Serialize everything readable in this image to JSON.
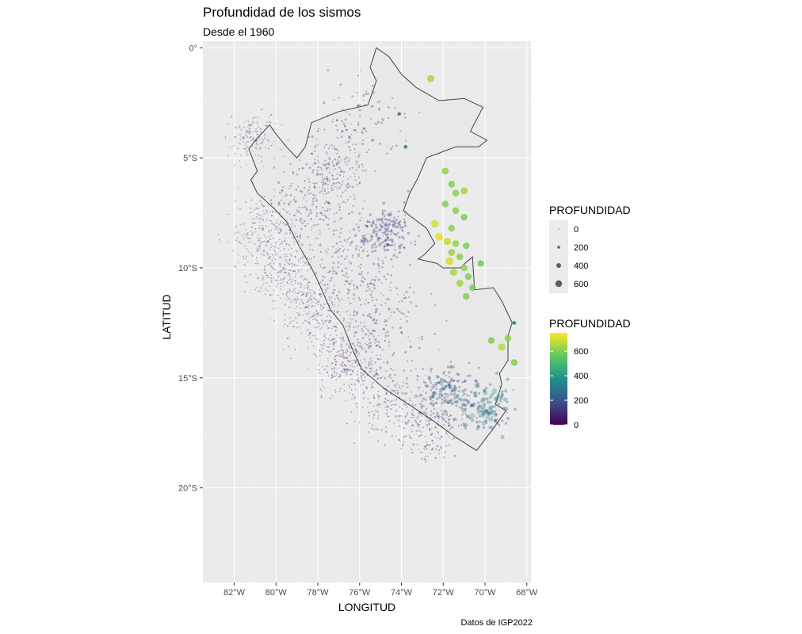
{
  "title": "Profundidad de los sismos",
  "subtitle": "Desde el 1960",
  "caption": "Datos de IGP2022",
  "chart_data": {
    "type": "scatter",
    "title": "Profundidad de los sismos",
    "subtitle": "Desde el 1960",
    "xlabel": "LONGITUD",
    "ylabel": "LATITUD",
    "xlim": [
      -83.5,
      -67.8
    ],
    "ylim": [
      -24.3,
      0.3
    ],
    "x_ticks": [
      -82,
      -80,
      -78,
      -76,
      -74,
      -72,
      -70,
      -68
    ],
    "x_tick_labels": [
      "82°W",
      "80°W",
      "78°W",
      "76°W",
      "74°W",
      "72°W",
      "70°W",
      "68°W"
    ],
    "y_ticks": [
      0,
      -5,
      -10,
      -15,
      -20
    ],
    "y_tick_labels": [
      "0°",
      "5°S",
      "10°S",
      "15°S",
      "20°S"
    ],
    "grid": true,
    "legend_position": "right",
    "size_legend": {
      "title": "PROFUNDIDAD",
      "breaks": [
        0,
        200,
        400,
        600
      ],
      "labels": [
        "0",
        "200",
        "400",
        "600"
      ]
    },
    "color_legend": {
      "title": "PROFUNDIDAD",
      "palette": "viridis",
      "range": [
        0,
        750
      ],
      "breaks": [
        0,
        200,
        400,
        600
      ],
      "labels": [
        "0",
        "200",
        "400",
        "600"
      ]
    },
    "colors": [
      "#440154",
      "#3b528b",
      "#21908c",
      "#5ec962",
      "#fde725"
    ],
    "boundary": [
      [
        -75.2,
        0.0
      ],
      [
        -74.6,
        -0.4
      ],
      [
        -74.0,
        -1.2
      ],
      [
        -73.3,
        -1.8
      ],
      [
        -72.2,
        -2.4
      ],
      [
        -71.0,
        -2.3
      ],
      [
        -70.1,
        -2.7
      ],
      [
        -70.7,
        -3.8
      ],
      [
        -69.9,
        -4.2
      ],
      [
        -70.3,
        -4.5
      ],
      [
        -71.4,
        -4.5
      ],
      [
        -72.8,
        -5.0
      ],
      [
        -73.2,
        -5.9
      ],
      [
        -73.6,
        -6.6
      ],
      [
        -73.9,
        -7.4
      ],
      [
        -73.5,
        -7.7
      ],
      [
        -72.8,
        -8.2
      ],
      [
        -72.4,
        -8.9
      ],
      [
        -72.9,
        -9.4
      ],
      [
        -73.2,
        -9.6
      ],
      [
        -72.3,
        -9.8
      ],
      [
        -72.0,
        -10.0
      ],
      [
        -71.2,
        -10.0
      ],
      [
        -70.6,
        -9.5
      ],
      [
        -70.5,
        -11.0
      ],
      [
        -69.6,
        -10.9
      ],
      [
        -69.2,
        -11.5
      ],
      [
        -68.7,
        -12.5
      ],
      [
        -68.9,
        -13.1
      ],
      [
        -68.9,
        -14.2
      ],
      [
        -69.3,
        -14.8
      ],
      [
        -69.2,
        -15.3
      ],
      [
        -69.5,
        -16.2
      ],
      [
        -69.0,
        -16.5
      ],
      [
        -69.6,
        -17.3
      ],
      [
        -70.4,
        -18.3
      ],
      [
        -71.4,
        -17.7
      ],
      [
        -72.4,
        -17.0
      ],
      [
        -73.5,
        -16.3
      ],
      [
        -74.8,
        -15.5
      ],
      [
        -75.9,
        -14.6
      ],
      [
        -76.3,
        -13.8
      ],
      [
        -76.8,
        -12.6
      ],
      [
        -77.4,
        -11.9
      ],
      [
        -77.9,
        -10.8
      ],
      [
        -78.3,
        -10.0
      ],
      [
        -78.9,
        -9.0
      ],
      [
        -79.5,
        -7.9
      ],
      [
        -80.1,
        -7.3
      ],
      [
        -80.9,
        -6.6
      ],
      [
        -81.2,
        -6.0
      ],
      [
        -80.9,
        -5.6
      ],
      [
        -81.3,
        -4.6
      ],
      [
        -80.9,
        -4.1
      ],
      [
        -80.3,
        -3.5
      ],
      [
        -80.1,
        -3.8
      ],
      [
        -79.5,
        -4.5
      ],
      [
        -79.0,
        -5.0
      ],
      [
        -78.6,
        -4.5
      ],
      [
        -78.3,
        -3.4
      ],
      [
        -77.0,
        -2.9
      ],
      [
        -75.6,
        -2.6
      ],
      [
        -75.2,
        -1.5
      ],
      [
        -75.5,
        -0.9
      ],
      [
        -75.2,
        0.0
      ]
    ],
    "clusters": [
      {
        "lon": -80.5,
        "lat": -8.7,
        "spread": 0.9,
        "depth": 40,
        "n": 260
      },
      {
        "lon": -79.5,
        "lat": -10.5,
        "spread": 0.8,
        "depth": 40,
        "n": 200
      },
      {
        "lon": -78.0,
        "lat": -12.2,
        "spread": 0.8,
        "depth": 45,
        "n": 220
      },
      {
        "lon": -76.5,
        "lat": -14.3,
        "spread": 0.8,
        "depth": 50,
        "n": 260
      },
      {
        "lon": -74.5,
        "lat": -16.0,
        "spread": 0.9,
        "depth": 60,
        "n": 220
      },
      {
        "lon": -72.5,
        "lat": -17.2,
        "spread": 0.8,
        "depth": 70,
        "n": 180
      },
      {
        "lon": -81.0,
        "lat": -4.0,
        "spread": 0.6,
        "depth": 35,
        "n": 160
      },
      {
        "lon": -77.2,
        "lat": -5.7,
        "spread": 0.7,
        "depth": 70,
        "n": 160
      },
      {
        "lon": -74.8,
        "lat": -8.3,
        "spread": 0.6,
        "depth": 130,
        "n": 200
      },
      {
        "lon": -71.8,
        "lat": -15.6,
        "spread": 0.6,
        "depth": 150,
        "n": 160
      },
      {
        "lon": -70.0,
        "lat": -16.3,
        "spread": 0.6,
        "depth": 230,
        "n": 140
      },
      {
        "lon": -76.5,
        "lat": -10.0,
        "spread": 1.2,
        "depth": 90,
        "n": 200
      },
      {
        "lon": -78.5,
        "lat": -7.0,
        "spread": 1.0,
        "depth": 80,
        "n": 180
      },
      {
        "lon": -75.0,
        "lat": -12.5,
        "spread": 1.2,
        "depth": 100,
        "n": 180
      },
      {
        "lon": -76.0,
        "lat": -3.5,
        "spread": 1.0,
        "depth": 90,
        "n": 120
      }
    ],
    "deep_events": [
      {
        "lon": -72.6,
        "lat": -1.4,
        "depth": 650
      },
      {
        "lon": -74.1,
        "lat": -3.0,
        "depth": 250
      },
      {
        "lon": -73.8,
        "lat": -4.5,
        "depth": 300
      },
      {
        "lon": -71.9,
        "lat": -5.6,
        "depth": 620
      },
      {
        "lon": -71.6,
        "lat": -6.2,
        "depth": 600
      },
      {
        "lon": -71.4,
        "lat": -6.6,
        "depth": 610
      },
      {
        "lon": -71.0,
        "lat": -6.5,
        "depth": 640
      },
      {
        "lon": -71.9,
        "lat": -7.1,
        "depth": 600
      },
      {
        "lon": -71.4,
        "lat": -7.4,
        "depth": 620
      },
      {
        "lon": -71.0,
        "lat": -7.7,
        "depth": 590
      },
      {
        "lon": -72.4,
        "lat": -8.0,
        "depth": 700
      },
      {
        "lon": -71.6,
        "lat": -8.2,
        "depth": 620
      },
      {
        "lon": -72.2,
        "lat": -8.6,
        "depth": 720
      },
      {
        "lon": -71.8,
        "lat": -8.8,
        "depth": 680
      },
      {
        "lon": -71.4,
        "lat": -8.9,
        "depth": 620
      },
      {
        "lon": -70.9,
        "lat": -9.0,
        "depth": 600
      },
      {
        "lon": -71.6,
        "lat": -9.3,
        "depth": 640
      },
      {
        "lon": -71.2,
        "lat": -9.5,
        "depth": 610
      },
      {
        "lon": -71.7,
        "lat": -9.7,
        "depth": 700
      },
      {
        "lon": -71.0,
        "lat": -10.0,
        "depth": 620
      },
      {
        "lon": -71.5,
        "lat": -10.2,
        "depth": 650
      },
      {
        "lon": -70.8,
        "lat": -10.4,
        "depth": 600
      },
      {
        "lon": -71.2,
        "lat": -10.7,
        "depth": 640
      },
      {
        "lon": -70.6,
        "lat": -10.9,
        "depth": 590
      },
      {
        "lon": -70.2,
        "lat": -9.8,
        "depth": 580
      },
      {
        "lon": -70.9,
        "lat": -11.3,
        "depth": 600
      },
      {
        "lon": -69.7,
        "lat": -13.3,
        "depth": 600
      },
      {
        "lon": -69.2,
        "lat": -13.6,
        "depth": 660
      },
      {
        "lon": -68.9,
        "lat": -13.2,
        "depth": 620
      },
      {
        "lon": -68.6,
        "lat": -14.3,
        "depth": 600
      },
      {
        "lon": -68.6,
        "lat": -12.5,
        "depth": 300
      }
    ]
  }
}
